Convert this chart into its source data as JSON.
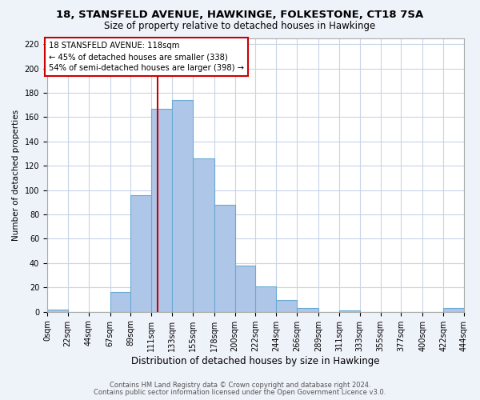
{
  "title": "18, STANSFELD AVENUE, HAWKINGE, FOLKESTONE, CT18 7SA",
  "subtitle": "Size of property relative to detached houses in Hawkinge",
  "xlabel": "Distribution of detached houses by size in Hawkinge",
  "ylabel": "Number of detached properties",
  "bin_edges": [
    0,
    22,
    44,
    67,
    89,
    111,
    133,
    155,
    178,
    200,
    222,
    244,
    266,
    289,
    311,
    333,
    355,
    377,
    400,
    422,
    444
  ],
  "bar_heights": [
    2,
    0,
    0,
    16,
    96,
    167,
    174,
    126,
    88,
    38,
    21,
    10,
    3,
    0,
    1,
    0,
    0,
    0,
    0,
    3
  ],
  "bar_color": "#aec6e8",
  "bar_edge_color": "#6aaad4",
  "vline_x": 118,
  "vline_color": "#cc0000",
  "ylim": [
    0,
    225
  ],
  "yticks": [
    0,
    20,
    40,
    60,
    80,
    100,
    120,
    140,
    160,
    180,
    200,
    220
  ],
  "tick_labels": [
    "0sqm",
    "22sqm",
    "44sqm",
    "67sqm",
    "89sqm",
    "111sqm",
    "133sqm",
    "155sqm",
    "178sqm",
    "200sqm",
    "222sqm",
    "244sqm",
    "266sqm",
    "289sqm",
    "311sqm",
    "333sqm",
    "355sqm",
    "377sqm",
    "400sqm",
    "422sqm",
    "444sqm"
  ],
  "annotation_title": "18 STANSFELD AVENUE: 118sqm",
  "annotation_line1": "← 45% of detached houses are smaller (338)",
  "annotation_line2": "54% of semi-detached houses are larger (398) →",
  "footnote1": "Contains HM Land Registry data © Crown copyright and database right 2024.",
  "footnote2": "Contains public sector information licensed under the Open Government Licence v3.0.",
  "background_color": "#eef2f9",
  "plot_bg_color": "#ffffff",
  "grid_color": "#c8d4e8",
  "title_fontsize": 9.5,
  "subtitle_fontsize": 8.5,
  "ylabel_fontsize": 7.5,
  "xlabel_fontsize": 8.5,
  "tick_fontsize": 7,
  "footnote_fontsize": 6
}
